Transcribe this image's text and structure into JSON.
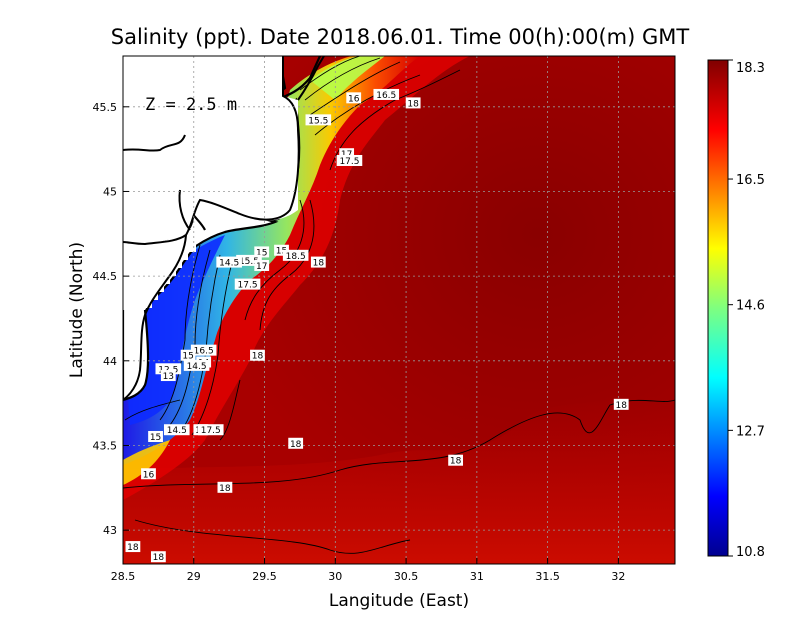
{
  "chart_data": {
    "type": "heatmap",
    "title": "Salinity (ppt). Date 2018.06.01. Time 00(h):00(m) GMT",
    "xlabel": "Langitude (East)",
    "ylabel": "Latitude (North)",
    "depth_annotation": "Z = 2.5 m",
    "xlim": [
      28.5,
      32.4
    ],
    "ylim": [
      42.8,
      45.8
    ],
    "x_ticks": [
      {
        "value": 28.5,
        "label": "28.5"
      },
      {
        "value": 29,
        "label": "29"
      },
      {
        "value": 29.5,
        "label": "29.5"
      },
      {
        "value": 30,
        "label": "30"
      },
      {
        "value": 30.5,
        "label": "30.5"
      },
      {
        "value": 31,
        "label": "31"
      },
      {
        "value": 31.5,
        "label": "31.5"
      },
      {
        "value": 32,
        "label": "32"
      }
    ],
    "y_ticks": [
      {
        "value": 43,
        "label": "43"
      },
      {
        "value": 43.5,
        "label": "43.5"
      },
      {
        "value": 44,
        "label": "44"
      },
      {
        "value": 44.5,
        "label": "44.5"
      },
      {
        "value": 45,
        "label": "45"
      },
      {
        "value": 45.5,
        "label": "45.5"
      }
    ],
    "grid": true,
    "colorbar": {
      "min": 10.8,
      "max": 18.3,
      "ticks": [
        {
          "value": 18.3,
          "label": "18.3"
        },
        {
          "value": 16.5,
          "label": "16.5"
        },
        {
          "value": 14.6,
          "label": "14.6"
        },
        {
          "value": 12.7,
          "label": "12.7"
        },
        {
          "value": 10.8,
          "label": "10.8"
        }
      ]
    },
    "contour_labels": [
      {
        "lon": 30.13,
        "lat": 45.55,
        "text": "16"
      },
      {
        "lon": 30.36,
        "lat": 45.57,
        "text": "16.5"
      },
      {
        "lon": 30.55,
        "lat": 45.52,
        "text": "18"
      },
      {
        "lon": 29.88,
        "lat": 45.42,
        "text": "15.5"
      },
      {
        "lon": 30.08,
        "lat": 45.22,
        "text": "17"
      },
      {
        "lon": 30.1,
        "lat": 45.18,
        "text": "17.5"
      },
      {
        "lon": 29.48,
        "lat": 44.64,
        "text": "15"
      },
      {
        "lon": 29.62,
        "lat": 44.65,
        "text": "15"
      },
      {
        "lon": 29.72,
        "lat": 44.62,
        "text": "18.5"
      },
      {
        "lon": 29.39,
        "lat": 44.59,
        "text": "15.5"
      },
      {
        "lon": 29.48,
        "lat": 44.56,
        "text": "17"
      },
      {
        "lon": 29.25,
        "lat": 44.58,
        "text": "14.5"
      },
      {
        "lon": 29.88,
        "lat": 44.58,
        "text": "18"
      },
      {
        "lon": 29.38,
        "lat": 44.45,
        "text": "17.5"
      },
      {
        "lon": 29.07,
        "lat": 44.06,
        "text": "16.5"
      },
      {
        "lon": 28.96,
        "lat": 44.03,
        "text": "15"
      },
      {
        "lon": 29.07,
        "lat": 43.99,
        "text": "14"
      },
      {
        "lon": 29.02,
        "lat": 43.97,
        "text": "14.5"
      },
      {
        "lon": 29.45,
        "lat": 44.03,
        "text": "18"
      },
      {
        "lon": 28.82,
        "lat": 43.95,
        "text": "12.5"
      },
      {
        "lon": 28.82,
        "lat": 43.91,
        "text": "13"
      },
      {
        "lon": 28.73,
        "lat": 43.55,
        "text": "15"
      },
      {
        "lon": 28.88,
        "lat": 43.59,
        "text": "14.5"
      },
      {
        "lon": 29.05,
        "lat": 43.59,
        "text": "16"
      },
      {
        "lon": 29.12,
        "lat": 43.59,
        "text": "17.5"
      },
      {
        "lon": 29.72,
        "lat": 43.51,
        "text": "18"
      },
      {
        "lon": 28.68,
        "lat": 43.33,
        "text": "16"
      },
      {
        "lon": 29.22,
        "lat": 43.25,
        "text": "18"
      },
      {
        "lon": 30.85,
        "lat": 43.41,
        "text": "18"
      },
      {
        "lon": 32.02,
        "lat": 43.74,
        "text": "18"
      },
      {
        "lon": 28.57,
        "lat": 42.9,
        "text": "18"
      },
      {
        "lon": 28.75,
        "lat": 42.84,
        "text": "18"
      }
    ]
  }
}
